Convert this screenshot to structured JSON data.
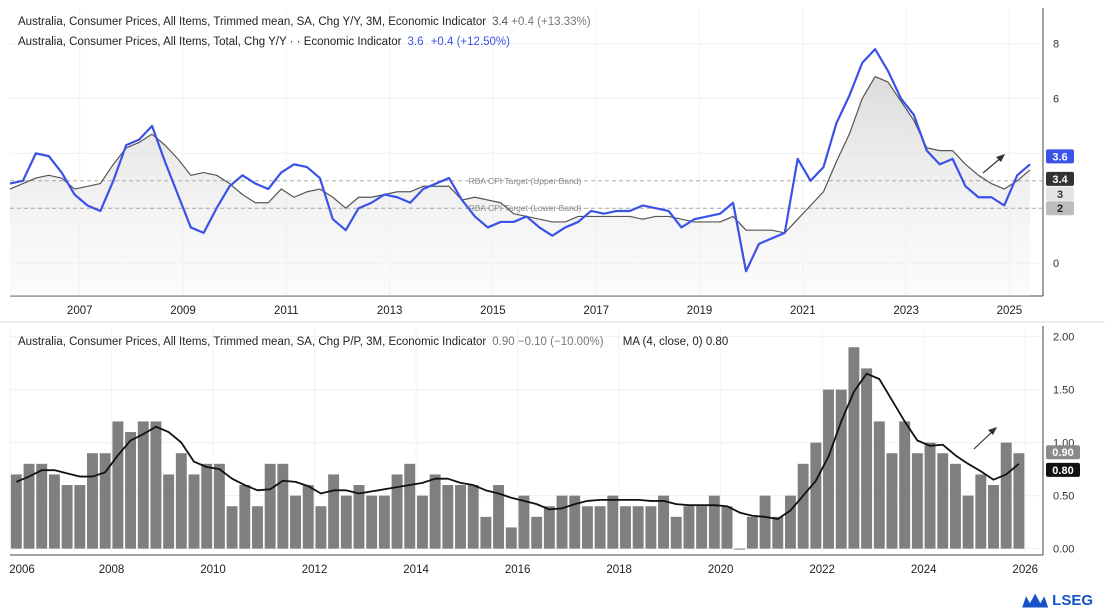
{
  "top_legend": {
    "line1_name": "Australia, Consumer Prices, All Items, Trimmed mean, SA, Chg Y/Y, 3M, Economic Indicator",
    "line1_value": "3.4",
    "line1_change": "+0.4 (+13.33%)",
    "line2_name": "Australia, Consumer Prices, All Items, Total, Chg Y/Y · · Economic Indicator",
    "line2_value": "3.6",
    "line2_change": "+0.4 (+12.50%)"
  },
  "bottom_legend": {
    "name": "Australia, Consumer Prices, All Items, Trimmed mean, SA, Chg P/P, 3M, Economic Indicator",
    "value": "0.90",
    "change": "−0.10 (−10.00%)",
    "ma_label": "MA (4, close, 0)",
    "ma_value": "0.80"
  },
  "brand": "LSEG",
  "colors": {
    "total": "#3b52e8",
    "trimmed": "#555555",
    "bars": "#7f7f7f",
    "ma": "#111111"
  },
  "chart_data": [
    {
      "type": "line",
      "title": "Australia, Consumer Prices, Chg Y/Y",
      "ylim": [
        -1.2,
        9.3
      ],
      "xlim": [
        2006.0,
        2026.0
      ],
      "y_ticks": [
        0,
        2,
        4,
        6,
        8
      ],
      "x_ticks": [
        "2007",
        "2009",
        "2011",
        "2013",
        "2015",
        "2017",
        "2019",
        "2021",
        "2023",
        "2025"
      ],
      "reference_lines": [
        {
          "label": "RBA CPI Target (Upper Band)",
          "value": 3
        },
        {
          "label": "RBA CPI Target (Lower Band)",
          "value": 2
        }
      ],
      "axis_markers": [
        "3.6",
        "3.4",
        "3",
        "2"
      ],
      "grid": true,
      "series": [
        {
          "name": "Australia, Consumer Prices, All Items, Total, Chg Y/Y",
          "x": [
            2006.0,
            2006.25,
            2006.5,
            2006.75,
            2007.0,
            2007.25,
            2007.5,
            2007.75,
            2008.0,
            2008.25,
            2008.5,
            2008.75,
            2009.0,
            2009.25,
            2009.5,
            2009.75,
            2010.0,
            2010.25,
            2010.5,
            2010.75,
            2011.0,
            2011.25,
            2011.5,
            2011.75,
            2012.0,
            2012.25,
            2012.5,
            2012.75,
            2013.0,
            2013.25,
            2013.5,
            2013.75,
            2014.0,
            2014.25,
            2014.5,
            2014.75,
            2015.0,
            2015.25,
            2015.5,
            2015.75,
            2016.0,
            2016.25,
            2016.5,
            2016.75,
            2017.0,
            2017.25,
            2017.5,
            2017.75,
            2018.0,
            2018.25,
            2018.5,
            2018.75,
            2019.0,
            2019.25,
            2019.5,
            2019.75,
            2020.0,
            2020.25,
            2020.5,
            2020.75,
            2021.0,
            2021.25,
            2021.5,
            2021.75,
            2022.0,
            2022.25,
            2022.5,
            2022.75,
            2023.0,
            2023.25,
            2023.5,
            2023.75,
            2024.0,
            2024.25,
            2024.5,
            2024.75,
            2025.0,
            2025.25,
            2025.5,
            2025.75
          ],
          "values": [
            2.9,
            3.0,
            4.0,
            3.9,
            3.3,
            2.5,
            2.1,
            1.9,
            3.0,
            4.3,
            4.5,
            5.0,
            3.7,
            2.5,
            1.3,
            1.1,
            2.0,
            2.8,
            3.2,
            2.9,
            2.7,
            3.3,
            3.6,
            3.5,
            3.1,
            1.6,
            1.2,
            2.0,
            2.2,
            2.5,
            2.4,
            2.2,
            2.7,
            2.9,
            3.1,
            2.3,
            1.7,
            1.3,
            1.5,
            1.5,
            1.7,
            1.3,
            1.0,
            1.3,
            1.5,
            1.9,
            1.8,
            1.9,
            1.9,
            2.1,
            2.0,
            1.9,
            1.3,
            1.6,
            1.7,
            1.8,
            2.2,
            -0.3,
            0.7,
            0.9,
            1.1,
            3.8,
            3.0,
            3.5,
            5.1,
            6.1,
            7.3,
            7.8,
            7.0,
            6.0,
            5.4,
            4.1,
            3.6,
            3.8,
            2.8,
            2.4,
            2.4,
            2.1,
            3.2,
            3.6
          ]
        },
        {
          "name": "Australia, Consumer Prices, All Items, Trimmed mean, SA, Chg Y/Y",
          "x": [
            2006.0,
            2006.25,
            2006.5,
            2006.75,
            2007.0,
            2007.25,
            2007.5,
            2007.75,
            2008.0,
            2008.25,
            2008.5,
            2008.75,
            2009.0,
            2009.25,
            2009.5,
            2009.75,
            2010.0,
            2010.25,
            2010.5,
            2010.75,
            2011.0,
            2011.25,
            2011.5,
            2011.75,
            2012.0,
            2012.25,
            2012.5,
            2012.75,
            2013.0,
            2013.25,
            2013.5,
            2013.75,
            2014.0,
            2014.25,
            2014.5,
            2014.75,
            2015.0,
            2015.25,
            2015.5,
            2015.75,
            2016.0,
            2016.25,
            2016.5,
            2016.75,
            2017.0,
            2017.25,
            2017.5,
            2017.75,
            2018.0,
            2018.25,
            2018.5,
            2018.75,
            2019.0,
            2019.25,
            2019.5,
            2019.75,
            2020.0,
            2020.25,
            2020.5,
            2020.75,
            2021.0,
            2021.25,
            2021.5,
            2021.75,
            2022.0,
            2022.25,
            2022.5,
            2022.75,
            2023.0,
            2023.25,
            2023.5,
            2023.75,
            2024.0,
            2024.25,
            2024.5,
            2024.75,
            2025.0,
            2025.25,
            2025.5,
            2025.75
          ],
          "values": [
            2.7,
            2.9,
            3.1,
            3.2,
            3.1,
            2.7,
            2.8,
            2.9,
            3.6,
            4.2,
            4.4,
            4.7,
            4.3,
            3.8,
            3.2,
            3.3,
            3.2,
            2.9,
            2.5,
            2.2,
            2.2,
            2.7,
            2.4,
            2.6,
            2.7,
            2.4,
            2.0,
            2.4,
            2.4,
            2.5,
            2.6,
            2.6,
            2.8,
            2.8,
            2.8,
            2.3,
            2.4,
            2.3,
            2.2,
            1.8,
            1.7,
            1.6,
            1.5,
            1.5,
            1.7,
            1.7,
            1.7,
            1.7,
            1.7,
            1.6,
            1.7,
            1.7,
            1.6,
            1.5,
            1.5,
            1.5,
            1.7,
            1.2,
            1.2,
            1.2,
            1.1,
            1.6,
            2.1,
            2.6,
            3.7,
            4.7,
            6.0,
            6.8,
            6.6,
            5.9,
            5.2,
            4.2,
            4.1,
            4.1,
            3.6,
            3.2,
            2.9,
            2.7,
            3.0,
            3.4
          ]
        }
      ]
    },
    {
      "type": "bar",
      "title": "Australia, Consumer Prices, All Items, Trimmed mean, SA, Chg P/P, 3M",
      "ylim": [
        -0.06,
        2.1
      ],
      "xlim": [
        2006.0,
        2026.35
      ],
      "y_ticks": [
        "0.00",
        "0.50",
        "1.00",
        "1.50",
        "2.00"
      ],
      "x_ticks": [
        "2006",
        "2008",
        "2010",
        "2012",
        "2014",
        "2016",
        "2018",
        "2020",
        "2022",
        "2024",
        "2026"
      ],
      "axis_markers": [
        "0.90",
        "0.80"
      ],
      "grid": true,
      "series": [
        {
          "name": "Australia, Consumer Prices, All Items, Trimmed mean, SA, Chg P/P, 3M",
          "x": [
            2006.0,
            2006.25,
            2006.5,
            2006.75,
            2007.0,
            2007.25,
            2007.5,
            2007.75,
            2008.0,
            2008.25,
            2008.5,
            2008.75,
            2009.0,
            2009.25,
            2009.5,
            2009.75,
            2010.0,
            2010.25,
            2010.5,
            2010.75,
            2011.0,
            2011.25,
            2011.5,
            2011.75,
            2012.0,
            2012.25,
            2012.5,
            2012.75,
            2013.0,
            2013.25,
            2013.5,
            2013.75,
            2014.0,
            2014.25,
            2014.5,
            2014.75,
            2015.0,
            2015.25,
            2015.5,
            2015.75,
            2016.0,
            2016.25,
            2016.5,
            2016.75,
            2017.0,
            2017.25,
            2017.5,
            2017.75,
            2018.0,
            2018.25,
            2018.5,
            2018.75,
            2019.0,
            2019.25,
            2019.5,
            2019.75,
            2020.0,
            2020.25,
            2020.5,
            2020.75,
            2021.0,
            2021.25,
            2021.5,
            2021.75,
            2022.0,
            2022.25,
            2022.5,
            2022.75,
            2023.0,
            2023.25,
            2023.5,
            2023.75,
            2024.0,
            2024.25,
            2024.5,
            2024.75,
            2025.0,
            2025.25,
            2025.5,
            2025.75
          ],
          "values": [
            0.7,
            0.8,
            0.8,
            0.7,
            0.6,
            0.6,
            0.9,
            0.9,
            1.2,
            1.1,
            1.2,
            1.2,
            0.7,
            0.9,
            0.7,
            0.8,
            0.8,
            0.4,
            0.6,
            0.4,
            0.8,
            0.8,
            0.5,
            0.6,
            0.4,
            0.7,
            0.5,
            0.6,
            0.5,
            0.5,
            0.7,
            0.8,
            0.5,
            0.7,
            0.6,
            0.6,
            0.6,
            0.3,
            0.6,
            0.2,
            0.5,
            0.3,
            0.4,
            0.5,
            0.5,
            0.4,
            0.4,
            0.5,
            0.4,
            0.4,
            0.4,
            0.5,
            0.3,
            0.4,
            0.4,
            0.5,
            0.4,
            0.0,
            0.3,
            0.5,
            0.3,
            0.5,
            0.8,
            1.0,
            1.5,
            1.5,
            1.9,
            1.7,
            1.2,
            0.9,
            1.2,
            0.9,
            1.0,
            0.9,
            0.8,
            0.5,
            0.7,
            0.6,
            1.0,
            0.9
          ]
        },
        {
          "name": "MA (4, close, 0)",
          "type": "line",
          "x": [
            2006.0,
            2006.25,
            2006.5,
            2006.75,
            2007.0,
            2007.25,
            2007.5,
            2007.75,
            2008.0,
            2008.25,
            2008.5,
            2008.75,
            2009.0,
            2009.25,
            2009.5,
            2009.75,
            2010.0,
            2010.25,
            2010.5,
            2010.75,
            2011.0,
            2011.25,
            2011.5,
            2011.75,
            2012.0,
            2012.25,
            2012.5,
            2012.75,
            2013.0,
            2013.25,
            2013.5,
            2013.75,
            2014.0,
            2014.25,
            2014.5,
            2014.75,
            2015.0,
            2015.25,
            2015.5,
            2015.75,
            2016.0,
            2016.25,
            2016.5,
            2016.75,
            2017.0,
            2017.25,
            2017.5,
            2017.75,
            2018.0,
            2018.25,
            2018.5,
            2018.75,
            2019.0,
            2019.25,
            2019.5,
            2019.75,
            2020.0,
            2020.25,
            2020.5,
            2020.75,
            2021.0,
            2021.25,
            2021.5,
            2021.75,
            2022.0,
            2022.25,
            2022.5,
            2022.75,
            2023.0,
            2023.25,
            2023.5,
            2023.75,
            2024.0,
            2024.25,
            2024.5,
            2024.75,
            2025.0,
            2025.25,
            2025.5,
            2025.75
          ],
          "values": [
            0.63,
            0.68,
            0.74,
            0.74,
            0.71,
            0.68,
            0.68,
            0.72,
            0.88,
            1.02,
            1.08,
            1.15,
            1.1,
            1.0,
            0.82,
            0.77,
            0.75,
            0.66,
            0.6,
            0.55,
            0.56,
            0.64,
            0.63,
            0.59,
            0.52,
            0.55,
            0.55,
            0.52,
            0.54,
            0.56,
            0.58,
            0.6,
            0.62,
            0.66,
            0.66,
            0.62,
            0.6,
            0.55,
            0.52,
            0.48,
            0.45,
            0.42,
            0.37,
            0.38,
            0.42,
            0.45,
            0.46,
            0.46,
            0.46,
            0.46,
            0.45,
            0.45,
            0.42,
            0.41,
            0.41,
            0.41,
            0.4,
            0.34,
            0.31,
            0.3,
            0.28,
            0.36,
            0.5,
            0.64,
            0.87,
            1.2,
            1.48,
            1.65,
            1.6,
            1.4,
            1.2,
            1.02,
            0.97,
            0.98,
            0.88,
            0.8,
            0.73,
            0.65,
            0.7,
            0.8
          ]
        }
      ]
    }
  ]
}
